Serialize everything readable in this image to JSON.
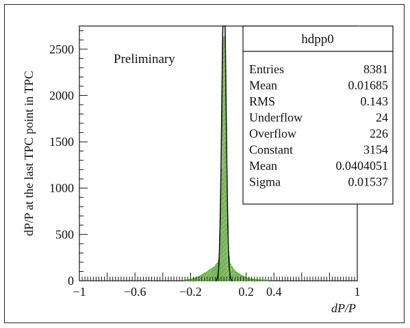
{
  "chart_data": {
    "type": "histogram",
    "xlabel": "dP/P",
    "ylabel": "dP/P at the last TPC point in TPC",
    "xlim": [
      -1,
      1
    ],
    "ylim": [
      0,
      2750
    ],
    "x_ticks": [
      "−1",
      "−0.6",
      "−0.2",
      "0.2",
      "0.4",
      "1"
    ],
    "x_tick_values": [
      -1,
      -0.6,
      -0.2,
      0.2,
      0.4,
      1
    ],
    "y_ticks": [
      "0",
      "500",
      "1000",
      "1500",
      "2000",
      "2500"
    ],
    "y_tick_values": [
      0,
      500,
      1000,
      1500,
      2000,
      2500
    ],
    "annotation": "Preliminary",
    "bin_width": 0.01,
    "bins": [
      [
        -0.24,
        6
      ],
      [
        -0.23,
        8
      ],
      [
        -0.22,
        10
      ],
      [
        -0.21,
        12
      ],
      [
        -0.2,
        16
      ],
      [
        -0.19,
        20
      ],
      [
        -0.18,
        24
      ],
      [
        -0.17,
        28
      ],
      [
        -0.16,
        34
      ],
      [
        -0.15,
        40
      ],
      [
        -0.14,
        48
      ],
      [
        -0.13,
        55
      ],
      [
        -0.12,
        64
      ],
      [
        -0.11,
        72
      ],
      [
        -0.1,
        80
      ],
      [
        -0.09,
        88
      ],
      [
        -0.08,
        98
      ],
      [
        -0.07,
        110
      ],
      [
        -0.06,
        120
      ],
      [
        -0.05,
        130
      ],
      [
        -0.04,
        140
      ],
      [
        -0.03,
        150
      ],
      [
        -0.02,
        170
      ],
      [
        -0.01,
        190
      ],
      [
        0.0,
        220
      ],
      [
        0.01,
        500
      ],
      [
        0.02,
        1200
      ],
      [
        0.03,
        2600
      ],
      [
        0.04,
        2630
      ],
      [
        0.05,
        1500
      ],
      [
        0.06,
        600
      ],
      [
        0.07,
        260
      ],
      [
        0.08,
        180
      ],
      [
        0.09,
        150
      ],
      [
        0.1,
        130
      ],
      [
        0.11,
        110
      ],
      [
        0.12,
        95
      ],
      [
        0.13,
        85
      ],
      [
        0.14,
        75
      ],
      [
        0.15,
        65
      ],
      [
        0.16,
        56
      ],
      [
        0.17,
        48
      ],
      [
        0.18,
        42
      ],
      [
        0.19,
        36
      ],
      [
        0.2,
        30
      ],
      [
        0.21,
        26
      ],
      [
        0.22,
        22
      ],
      [
        0.23,
        19
      ],
      [
        0.24,
        16
      ],
      [
        0.25,
        14
      ],
      [
        0.26,
        12
      ],
      [
        0.27,
        10
      ],
      [
        0.28,
        9
      ],
      [
        0.29,
        8
      ],
      [
        0.3,
        7
      ],
      [
        0.31,
        6
      ],
      [
        0.32,
        5
      ],
      [
        0.33,
        5
      ],
      [
        0.34,
        4
      ],
      [
        0.35,
        3
      ]
    ],
    "fit": {
      "constant": 3154,
      "mean": 0.0404051,
      "sigma": 0.01537
    },
    "colors": {
      "histogram": "#5ea83a",
      "fit": "#111111"
    }
  },
  "stats_box": {
    "title": "hdpp0",
    "rows": [
      {
        "label": "Entries",
        "value": "8381"
      },
      {
        "label": "Mean",
        "value": "0.01685"
      },
      {
        "label": "RMS",
        "value": "0.143"
      },
      {
        "label": "Underflow",
        "value": "24"
      },
      {
        "label": "Overflow",
        "value": "226"
      },
      {
        "label": "Constant",
        "value": "3154"
      },
      {
        "label": "Mean",
        "value": "0.0404051"
      },
      {
        "label": "Sigma",
        "value": "0.01537"
      }
    ]
  }
}
